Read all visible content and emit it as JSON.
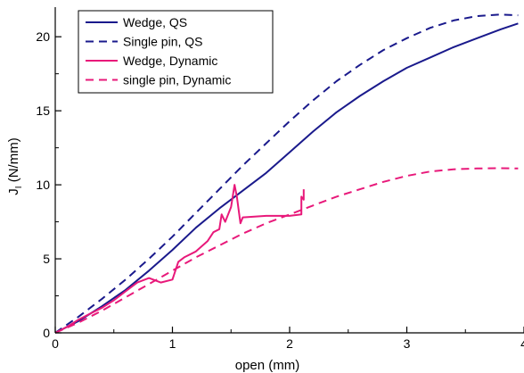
{
  "chart_data": {
    "type": "line",
    "title": "",
    "xlabel": "open (mm)",
    "ylabel_main": "J",
    "ylabel_sub": "I",
    "ylabel_unit": " (N/mm)",
    "xlim": [
      0,
      4.0
    ],
    "ylim": [
      0,
      22
    ],
    "x_ticks": [
      0,
      1,
      2,
      3,
      4
    ],
    "x_tick_labels": [
      "0",
      "1",
      "2",
      "3",
      "4"
    ],
    "y_ticks": [
      0,
      5,
      10,
      15,
      20
    ],
    "y_tick_labels": [
      "0",
      "5",
      "10",
      "15",
      "20"
    ],
    "grid": false,
    "legend_position": "top-left",
    "series": [
      {
        "name": "Wedge, QS",
        "color": "#1a1a8c",
        "dash": "solid",
        "x": [
          0,
          0.2,
          0.4,
          0.6,
          0.8,
          1.0,
          1.2,
          1.4,
          1.6,
          1.8,
          2.0,
          2.2,
          2.4,
          2.6,
          2.8,
          3.0,
          3.2,
          3.4,
          3.6,
          3.8,
          3.95
        ],
        "y": [
          0,
          0.8,
          1.8,
          2.9,
          4.2,
          5.6,
          7.1,
          8.4,
          9.6,
          10.8,
          12.2,
          13.6,
          14.9,
          16.0,
          17.0,
          17.9,
          18.6,
          19.3,
          19.9,
          20.5,
          20.9
        ]
      },
      {
        "name": "Single pin, QS",
        "color": "#1a1a8c",
        "dash": "dashed",
        "x": [
          0,
          0.2,
          0.4,
          0.6,
          0.8,
          1.0,
          1.2,
          1.4,
          1.6,
          1.8,
          2.0,
          2.2,
          2.4,
          2.6,
          2.8,
          3.0,
          3.2,
          3.4,
          3.6,
          3.8,
          3.95
        ],
        "y": [
          0,
          1.1,
          2.3,
          3.6,
          5.0,
          6.5,
          8.1,
          9.7,
          11.3,
          12.8,
          14.3,
          15.7,
          17.0,
          18.1,
          19.1,
          19.9,
          20.6,
          21.1,
          21.4,
          21.5,
          21.45
        ]
      },
      {
        "name": "Wedge, Dynamic",
        "color": "#e8197a",
        "dash": "solid",
        "x": [
          0,
          0.1,
          0.2,
          0.3,
          0.4,
          0.5,
          0.6,
          0.7,
          0.8,
          0.9,
          1.0,
          1.05,
          1.1,
          1.2,
          1.3,
          1.35,
          1.4,
          1.42,
          1.45,
          1.5,
          1.53,
          1.55,
          1.58,
          1.6,
          1.8,
          2.0,
          2.1,
          2.1,
          2.12,
          2.12
        ],
        "y": [
          0,
          0.4,
          0.9,
          1.3,
          1.7,
          2.2,
          2.8,
          3.4,
          3.7,
          3.4,
          3.6,
          4.8,
          5.1,
          5.5,
          6.2,
          6.8,
          7.0,
          8.0,
          7.5,
          8.5,
          10.0,
          9.2,
          7.4,
          7.8,
          7.9,
          7.9,
          8.0,
          9.2,
          9.0,
          9.7
        ]
      },
      {
        "name": "single pin, Dynamic",
        "color": "#e8197a",
        "dash": "dashed",
        "x": [
          0,
          0.2,
          0.4,
          0.6,
          0.8,
          1.0,
          1.2,
          1.4,
          1.6,
          1.8,
          2.0,
          2.2,
          2.4,
          2.6,
          2.8,
          3.0,
          3.2,
          3.4,
          3.6,
          3.8,
          3.95
        ],
        "y": [
          0,
          0.7,
          1.5,
          2.4,
          3.3,
          4.2,
          5.1,
          5.9,
          6.7,
          7.4,
          8.0,
          8.6,
          9.2,
          9.7,
          10.2,
          10.6,
          10.9,
          11.05,
          11.1,
          11.12,
          11.1
        ]
      }
    ]
  }
}
